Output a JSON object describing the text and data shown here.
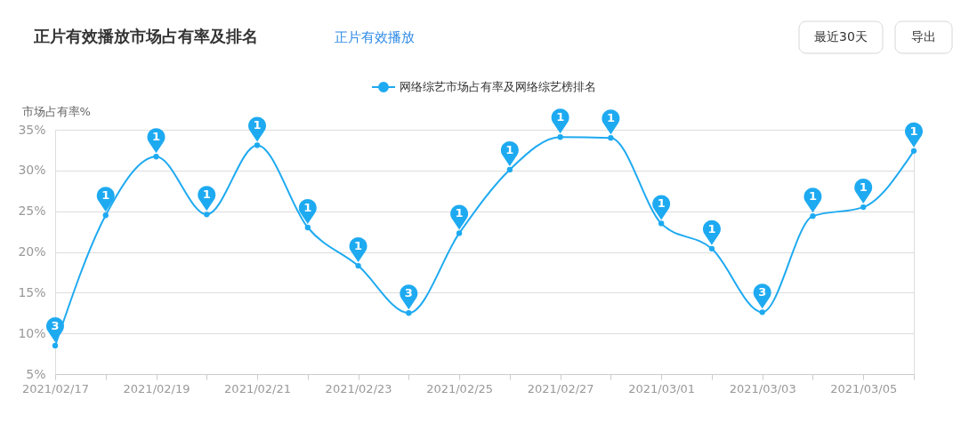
{
  "chart_data": {
    "type": "line",
    "title": "正片有效播放市场占有率及排名",
    "subtitle": "正片有效播放",
    "ylabel": "市场占有率%",
    "annotations": [
      "最近30天",
      "导出",
      {
        "text": "3",
        "x": "2021-02-17",
        "y": 8.5
      },
      {
        "text": "1",
        "x": "2021-02-18",
        "y": 24.5
      },
      {
        "text": "1",
        "x": "2021-02-19",
        "y": 31.7
      },
      {
        "text": "1",
        "x": "2021-02-20",
        "y": 24.6
      },
      {
        "text": "1",
        "x": "2021-02-21",
        "y": 33.1
      },
      {
        "text": "1",
        "x": "2021-02-22",
        "y": 23.0
      },
      {
        "text": "1",
        "x": "2021-02-23",
        "y": 18.3
      },
      {
        "text": "3",
        "x": "2021-02-24",
        "y": 12.5
      },
      {
        "text": "1",
        "x": "2021-02-25",
        "y": 22.3
      },
      {
        "text": "1",
        "x": "2021-02-26",
        "y": 30.1
      },
      {
        "text": "1",
        "x": "2021-02-27",
        "y": 34.1
      },
      {
        "text": "1",
        "x": "2021-02-28",
        "y": 34.0
      },
      {
        "text": "1",
        "x": "2021-03-01",
        "y": 23.5
      },
      {
        "text": "1",
        "x": "2021-03-02",
        "y": 20.4
      },
      {
        "text": "3",
        "x": "2021-03-03",
        "y": 12.6
      },
      {
        "text": "1",
        "x": "2021-03-04",
        "y": 24.4
      },
      {
        "text": "1",
        "x": "2021-03-05",
        "y": 25.5
      },
      {
        "text": "1",
        "x": "2021-03-06",
        "y": 32.4
      }
    ],
    "x": [
      "2021-02-17",
      "2021-02-18",
      "2021-02-19",
      "2021-02-20",
      "2021-02-21",
      "2021-02-22",
      "2021-02-23",
      "2021-02-24",
      "2021-02-25",
      "2021-02-26",
      "2021-02-27",
      "2021-02-28",
      "2021-03-01",
      "2021-03-02",
      "2021-03-03",
      "2021-03-04",
      "2021-03-05",
      "2021-03-06"
    ],
    "series": [
      {
        "name": "网络综艺市场占有率及网络综艺榜排名",
        "color": "#1eaaf1",
        "values": [
          8.5,
          24.5,
          31.7,
          24.6,
          33.1,
          23.0,
          18.3,
          12.5,
          22.3,
          30.1,
          34.1,
          34.0,
          23.5,
          20.4,
          12.6,
          24.4,
          25.5,
          32.4
        ]
      }
    ],
    "xlim": [
      "2021-02-17",
      "2021-03-06"
    ],
    "xticks": [
      {
        "value": "2021-02-17",
        "label": "2021/02/17"
      },
      {
        "value": "2021-02-18",
        "label": null
      },
      {
        "value": "2021-02-19",
        "label": "2021/02/19"
      },
      {
        "value": "2021-02-20",
        "label": null
      },
      {
        "value": "2021-02-21",
        "label": "2021/02/21"
      },
      {
        "value": "2021-02-22",
        "label": null
      },
      {
        "value": "2021-02-23",
        "label": "2021/02/23"
      },
      {
        "value": "2021-02-24",
        "label": null
      },
      {
        "value": "2021-02-25",
        "label": "2021/02/25"
      },
      {
        "value": "2021-02-26",
        "label": null
      },
      {
        "value": "2021-02-27",
        "label": "2021/02/27"
      },
      {
        "value": "2021-02-28",
        "label": null
      },
      {
        "value": "2021-03-01",
        "label": "2021/03/01"
      },
      {
        "value": "2021-03-02",
        "label": null
      },
      {
        "value": "2021-03-03",
        "label": "2021/03/03"
      },
      {
        "value": "2021-03-04",
        "label": null
      },
      {
        "value": "2021-03-05",
        "label": "2021/03/05"
      },
      {
        "value": "2021-03-06",
        "label": null
      }
    ],
    "ylim": [
      5,
      35
    ],
    "yticks": [
      {
        "value": 5,
        "label": "5%"
      },
      {
        "value": 10,
        "label": "10%"
      },
      {
        "value": 15,
        "label": "15%"
      },
      {
        "value": 20,
        "label": "20%"
      },
      {
        "value": 25,
        "label": "25%"
      },
      {
        "value": 30,
        "label": "30%"
      },
      {
        "value": 35,
        "label": "35%"
      }
    ],
    "grid": "y",
    "legend": "top",
    "marker": "circle",
    "line_style": "solid"
  }
}
